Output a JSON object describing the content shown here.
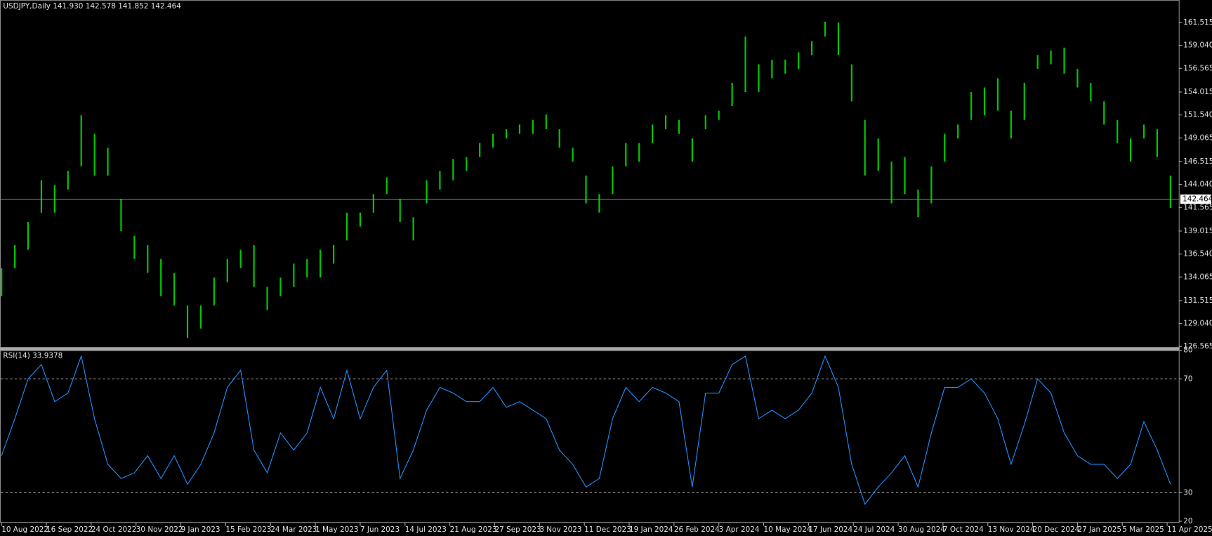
{
  "chart_data": [
    {
      "type": "ohlc",
      "title": "USDJPY,Daily  141.930 142.578 141.852 142.464",
      "color": "#00c800",
      "xlim": [
        0,
        709
      ],
      "ylim": [
        126.4,
        163.93
      ],
      "yticks": [
        161.515,
        {
          "value": 159.04,
          "label": "159.040"
        },
        156.565,
        154.015,
        {
          "value": 151.54,
          "label": "151.540"
        },
        149.065,
        146.515,
        {
          "value": 144.04,
          "label": "144.040"
        },
        141.565,
        139.015,
        {
          "value": 136.54,
          "label": "136.540"
        },
        134.065,
        131.515,
        {
          "value": 129.04,
          "label": "129.040"
        },
        126.565
      ],
      "last_price": 142.464,
      "x": [
        0,
        8,
        16,
        24,
        32,
        40,
        48,
        56,
        64,
        72,
        80,
        88,
        96,
        104,
        112,
        120,
        128,
        136,
        144,
        152,
        160,
        168,
        176,
        184,
        192,
        200,
        208,
        216,
        224,
        232,
        240,
        248,
        256,
        264,
        272,
        280,
        288,
        296,
        304,
        312,
        320,
        328,
        336,
        344,
        352,
        360,
        368,
        376,
        384,
        392,
        400,
        408,
        416,
        424,
        432,
        440,
        448,
        456,
        464,
        472,
        480,
        488,
        496,
        504,
        512,
        520,
        528,
        536,
        544,
        552,
        560,
        568,
        576,
        584,
        592,
        600,
        608,
        616,
        624,
        632,
        640,
        648,
        656,
        664,
        672,
        680,
        688,
        696,
        704
      ],
      "high": [
        135,
        137.5,
        140,
        144.5,
        144,
        145.5,
        151.5,
        149.5,
        148,
        142.5,
        138.5,
        137.5,
        136,
        134.5,
        131,
        131,
        134,
        136,
        137,
        137.5,
        133,
        134,
        135.5,
        136,
        137,
        137.5,
        141,
        141,
        143,
        144.8,
        142.5,
        140.5,
        144.5,
        145.5,
        146.8,
        147,
        148.5,
        149.5,
        150,
        150.5,
        151,
        151.6,
        150,
        148,
        145,
        143,
        146,
        148.5,
        148.5,
        150.5,
        151.5,
        151,
        149,
        151.5,
        152,
        155,
        160,
        157,
        157.5,
        157.5,
        158.3,
        159.5,
        161.6,
        161.5,
        157,
        151,
        149,
        146.5,
        147,
        143.5,
        146,
        149.5,
        150.5,
        154,
        154.5,
        155.5,
        152,
        155,
        158,
        158.5,
        158.8,
        156.5,
        155,
        153,
        151,
        149,
        150.5,
        150,
        145
      ],
      "low": [
        132,
        135,
        137,
        141,
        141,
        143.5,
        146,
        145,
        145,
        139,
        136,
        134.5,
        132,
        131,
        127.5,
        128.5,
        131,
        133.5,
        135,
        133,
        130.5,
        132,
        133,
        134,
        134,
        135.5,
        138,
        139.5,
        141,
        143,
        140,
        138,
        142,
        143.5,
        144.5,
        145.5,
        147,
        148,
        149,
        149.5,
        149.5,
        150,
        148,
        146.5,
        142,
        141,
        143,
        146,
        146.5,
        148.5,
        150,
        149.5,
        146.5,
        150,
        151,
        152.5,
        154,
        154,
        155.5,
        156,
        156.5,
        158,
        160,
        158,
        153,
        145,
        145.5,
        142,
        143,
        140.5,
        142,
        146.5,
        149,
        151,
        151.5,
        152,
        149,
        151,
        156.5,
        157,
        156,
        154.5,
        153,
        150.5,
        148.5,
        146.5,
        149,
        147,
        141.5
      ]
    },
    {
      "type": "line",
      "title": "RSI(14) 33.9378",
      "color": "#1e90ff",
      "xlim": [
        0,
        709
      ],
      "ylim": [
        20,
        80
      ],
      "yticks": [
        20,
        30,
        70,
        80
      ],
      "levels": [
        30,
        70
      ],
      "xticks": [
        {
          "value": 0,
          "label": "10 Aug 2022"
        },
        {
          "value": 27,
          "label": "16 Sep 2022"
        },
        {
          "value": 54,
          "label": "24 Oct 2022"
        },
        {
          "value": 81,
          "label": "30 Nov 2022"
        },
        {
          "value": 108,
          "label": "9 Jan 2023"
        },
        {
          "value": 135,
          "label": "15 Feb 2023"
        },
        {
          "value": 162,
          "label": "24 Mar 2023"
        },
        {
          "value": 189,
          "label": "1 May 2023"
        },
        {
          "value": 216,
          "label": "7 Jun 2023"
        },
        {
          "value": 243,
          "label": "14 Jul 2023"
        },
        {
          "value": 270,
          "label": "21 Aug 2023"
        },
        {
          "value": 297,
          "label": "27 Sep 2023"
        },
        {
          "value": 324,
          "label": "3 Nov 2023"
        },
        {
          "value": 351,
          "label": "11 Dec 2023"
        },
        {
          "value": 378,
          "label": "19 Jan 2024"
        },
        {
          "value": 405,
          "label": "26 Feb 2024"
        },
        {
          "value": 432,
          "label": "3 Apr 2024"
        },
        {
          "value": 459,
          "label": "10 May 2024"
        },
        {
          "value": 486,
          "label": "17 Jun 2024"
        },
        {
          "value": 513,
          "label": "24 Jul 2024"
        },
        {
          "value": 540,
          "label": "30 Aug 2024"
        },
        {
          "value": 567,
          "label": "7 Oct 2024"
        },
        {
          "value": 594,
          "label": "13 Nov 2024"
        },
        {
          "value": 621,
          "label": "20 Dec 2024"
        },
        {
          "value": 648,
          "label": "27 Jan 2025"
        },
        {
          "value": 675,
          "label": "5 Mar 2025"
        },
        {
          "value": 702,
          "label": "11 Apr 2025"
        }
      ],
      "x": [
        0,
        8,
        16,
        24,
        32,
        40,
        48,
        56,
        64,
        72,
        80,
        88,
        96,
        104,
        112,
        120,
        128,
        136,
        144,
        152,
        160,
        168,
        176,
        184,
        192,
        200,
        208,
        216,
        224,
        232,
        240,
        248,
        256,
        264,
        272,
        280,
        288,
        296,
        304,
        312,
        320,
        328,
        336,
        344,
        352,
        360,
        368,
        376,
        384,
        392,
        400,
        408,
        416,
        424,
        432,
        440,
        448,
        456,
        464,
        472,
        480,
        488,
        496,
        504,
        512,
        520,
        528,
        536,
        544,
        552,
        560,
        568,
        576,
        584,
        592,
        600,
        608,
        616,
        624,
        632,
        640,
        648,
        656,
        664,
        672,
        680,
        688,
        696,
        704
      ],
      "values": [
        43,
        56,
        70,
        75,
        62,
        65,
        78,
        56,
        40,
        35,
        37,
        43,
        35,
        43,
        33,
        40,
        51,
        67,
        73,
        45,
        37,
        51,
        45,
        51,
        67,
        56,
        73,
        56,
        67,
        73,
        35,
        45,
        59,
        67,
        65,
        62,
        62,
        67,
        60,
        62,
        59,
        56,
        45,
        40,
        32,
        35,
        56,
        67,
        62,
        67,
        65,
        62,
        32,
        65,
        65,
        75,
        78,
        56,
        59,
        56,
        59,
        65,
        78,
        67,
        40,
        26,
        32,
        37,
        43,
        32,
        51,
        67,
        67,
        70,
        65,
        56,
        40,
        54,
        70,
        65,
        51,
        43,
        40,
        40,
        35,
        40,
        55,
        45,
        33
      ]
    }
  ]
}
